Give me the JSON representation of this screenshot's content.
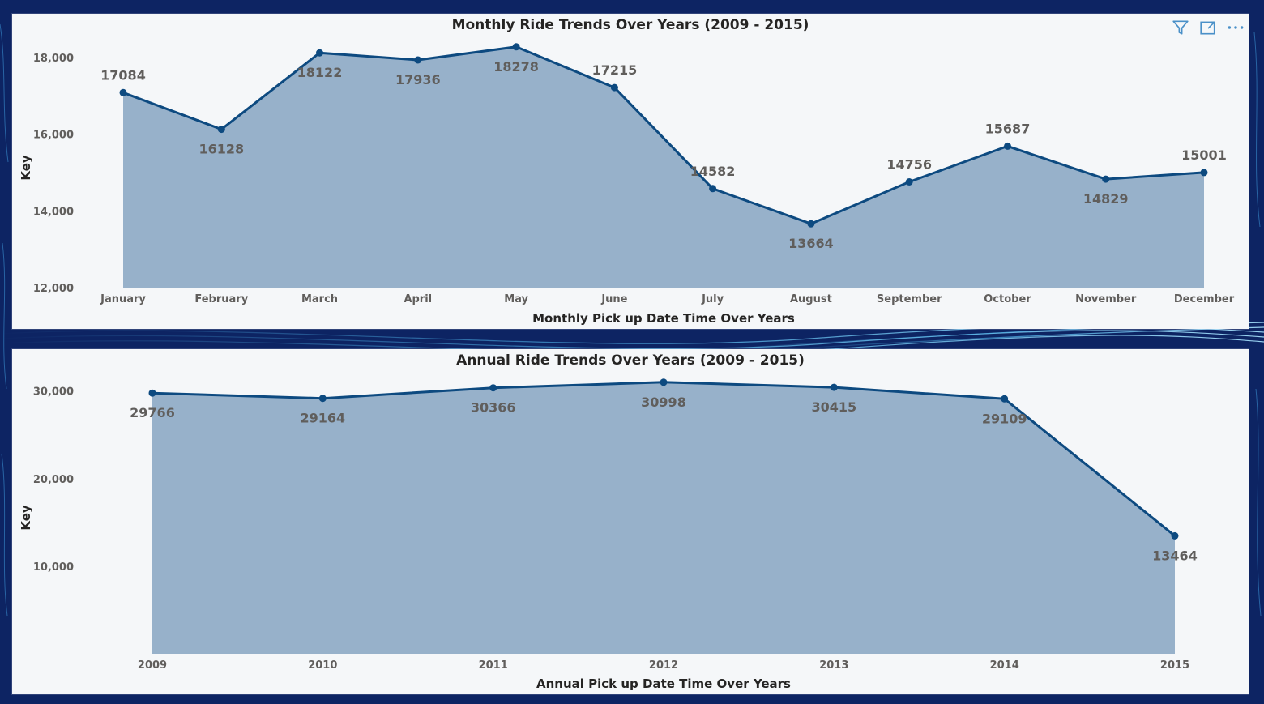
{
  "theme": {
    "background": "#0d2463",
    "panel": "#f5f7f9",
    "line": "#0d4a80",
    "area": "#97b1ca",
    "text_dark": "#252423",
    "text_muted": "#605e5c",
    "icon": "#4a90c8"
  },
  "visual_header": {
    "icons": [
      "filter-icon",
      "focus-mode-icon",
      "more-options-icon"
    ]
  },
  "chart_data": [
    {
      "type": "area",
      "title": "Monthly Ride Trends Over Years (2009 - 2015)",
      "xlabel": "Monthly Pick up Date Time Over Years",
      "ylabel": "Key",
      "categories": [
        "January",
        "February",
        "March",
        "April",
        "May",
        "June",
        "July",
        "August",
        "September",
        "October",
        "November",
        "December"
      ],
      "values": [
        17084,
        16128,
        18122,
        17936,
        18278,
        17215,
        14582,
        13664,
        14756,
        15687,
        14829,
        15001
      ],
      "value_labels": [
        "17084",
        "16128",
        "18122",
        "17936",
        "18278",
        "17215",
        "14582",
        "13664",
        "14756",
        "15687",
        "14829",
        "15001"
      ],
      "label_position": [
        "above",
        "below",
        "below",
        "below",
        "below",
        "above",
        "above",
        "below",
        "above",
        "above",
        "below",
        "above"
      ],
      "ylim": [
        12000,
        18400
      ],
      "yticks": [
        12000,
        14000,
        16000,
        18000
      ],
      "ytick_labels": [
        "12,000",
        "14,000",
        "16,000",
        "18,000"
      ],
      "grid": false,
      "legend": "none"
    },
    {
      "type": "area",
      "title": "Annual Ride Trends Over Years (2009 - 2015)",
      "xlabel": "Annual Pick up Date Time Over Years",
      "ylabel": "Key",
      "categories": [
        "2009",
        "2010",
        "2011",
        "2012",
        "2013",
        "2014",
        "2015"
      ],
      "values": [
        29766,
        29164,
        30366,
        30998,
        30415,
        29109,
        13464
      ],
      "value_labels": [
        "29766",
        "29164",
        "30366",
        "30998",
        "30415",
        "29109",
        "13464"
      ],
      "label_position": [
        "below",
        "below",
        "below",
        "below",
        "below",
        "below",
        "below"
      ],
      "ylim": [
        0,
        32000
      ],
      "yticks": [
        10000,
        20000,
        30000
      ],
      "ytick_labels": [
        "10,000",
        "20,000",
        "30,000"
      ],
      "grid": false,
      "legend": "none"
    }
  ]
}
